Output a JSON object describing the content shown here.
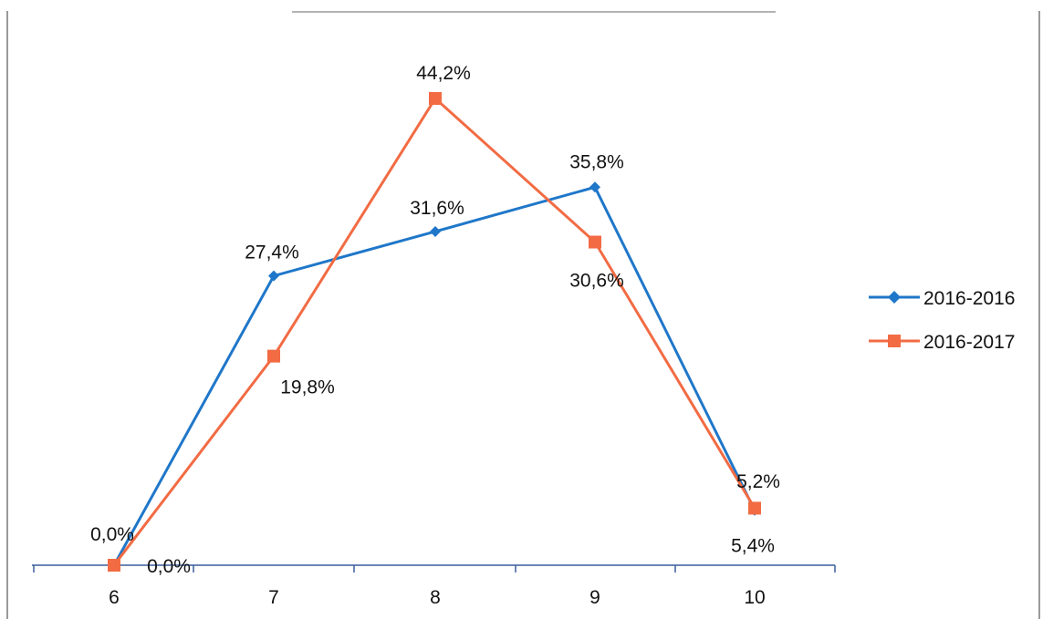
{
  "chart_data": {
    "type": "line",
    "categories": [
      "6",
      "7",
      "8",
      "9",
      "10"
    ],
    "series": [
      {
        "name": "2016-2016",
        "values": [
          0.0,
          27.4,
          31.6,
          35.8,
          5.2
        ],
        "labels": [
          "0,0%",
          "27,4%",
          "31,6%",
          "35,8%",
          "5,2%"
        ],
        "color": "#1f77c9",
        "marker": "diamond"
      },
      {
        "name": "2016-2017",
        "values": [
          0.0,
          19.8,
          44.2,
          30.6,
          5.4
        ],
        "labels": [
          "0,0%",
          "19,8%",
          "44,2%",
          "30,6%",
          "5,4%"
        ],
        "color": "#f26b43",
        "marker": "square"
      }
    ],
    "ylim": [
      0,
      44.2
    ],
    "grid": false,
    "legend_position": "right"
  }
}
